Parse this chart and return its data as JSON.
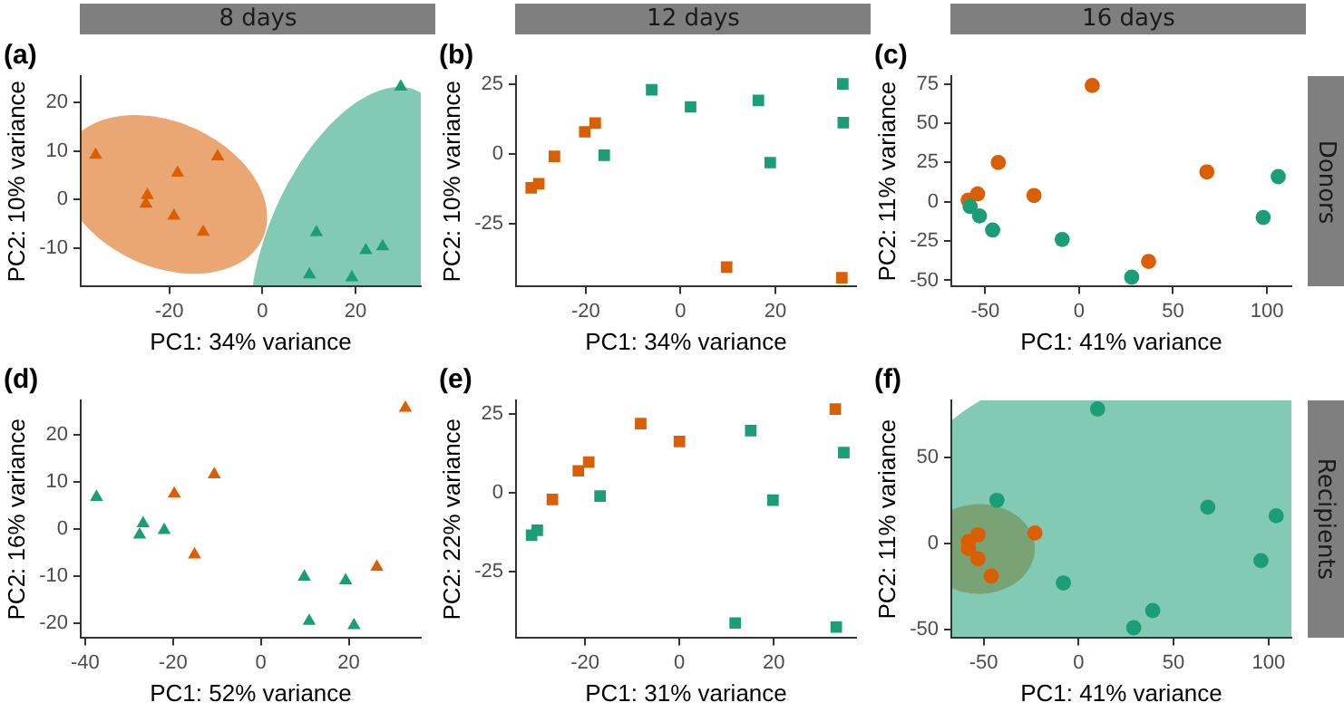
{
  "chart_data": [
    {
      "type": "scatter",
      "title": "(a)",
      "subtitle": "8 days",
      "xlabel": "PC1: 34% variance",
      "ylabel": "PC2: 10% variance",
      "marker": "triangle",
      "xlim": [
        -39,
        34
      ],
      "ylim": [
        -18,
        25.5
      ],
      "xticks": [
        -20,
        0,
        20
      ],
      "yticks": [
        -10,
        0,
        10,
        20
      ],
      "series": [
        {
          "color": "#d95f02",
          "x": [
            -35.8,
            -9.6,
            -18.2,
            -24.7,
            -25,
            -19,
            -12.7
          ],
          "values": [
            9.2,
            8.9,
            5.5,
            0.9,
            -0.9,
            -3.4,
            -6.7
          ]
        },
        {
          "color": "#1b9e77",
          "x": [
            29.7,
            11.6,
            22.2,
            25.8,
            10.1,
            19.2
          ],
          "values": [
            23.3,
            -6.8,
            -10.5,
            -9.7,
            -15.5,
            -16.1
          ]
        }
      ]
    },
    {
      "type": "scatter",
      "title": "(b)",
      "subtitle": "12 days",
      "xlabel": "PC1: 34% variance",
      "ylabel": "PC2: 10% variance",
      "marker": "square",
      "xlim": [
        -34.7,
        37
      ],
      "ylim": [
        -47.4,
        27.8
      ],
      "xticks": [
        -20,
        0,
        20
      ],
      "yticks": [
        -25,
        0,
        25
      ],
      "series": [
        {
          "color": "#d95f02",
          "x": [
            -31.5,
            -29.9,
            -26.6,
            -20.2,
            -18,
            9.7,
            34
          ],
          "values": [
            -12.1,
            -10.7,
            -0.9,
            7.9,
            11,
            -40.4,
            -44.2
          ]
        },
        {
          "color": "#1b9e77",
          "x": [
            -6.1,
            2.1,
            16.4,
            34.2,
            34.3,
            18.9,
            -16.1
          ],
          "values": [
            22.9,
            16.8,
            19.1,
            25,
            11.2,
            -3.1,
            -0.5
          ]
        }
      ]
    },
    {
      "type": "scatter",
      "title": "(c)",
      "subtitle": "16 days",
      "y2label": "Donors",
      "xlabel": "PC1: 41% variance",
      "ylabel": "PC2: 11% variance",
      "marker": "circle",
      "xlim": [
        -68,
        113
      ],
      "ylim": [
        -54,
        80
      ],
      "xticks": [
        -50,
        0,
        50,
        100
      ],
      "yticks": [
        -50,
        -25,
        0,
        25,
        50,
        75
      ],
      "series": [
        {
          "color": "#d95f02",
          "x": [
            7,
            -43,
            -54,
            -59,
            -24,
            68,
            37
          ],
          "values": [
            74,
            25,
            5,
            1,
            4,
            19,
            -38
          ]
        },
        {
          "color": "#1b9e77",
          "x": [
            -58,
            -53,
            -46,
            -9,
            28,
            98,
            106
          ],
          "values": [
            -3,
            -9,
            -18,
            -24,
            -48,
            -10,
            16
          ]
        }
      ]
    },
    {
      "type": "scatter",
      "title": "(d)",
      "xlabel": "PC1: 52% variance",
      "ylabel": "PC2: 16% variance",
      "marker": "triangle",
      "xlim": [
        -41,
        36.4
      ],
      "ylim": [
        -23.1,
        27.3
      ],
      "xticks": [
        -40,
        -20,
        0,
        20
      ],
      "yticks": [
        -20,
        -10,
        0,
        10,
        20
      ],
      "series": [
        {
          "color": "#d95f02",
          "x": [
            32.9,
            -10.6,
            -19.7,
            -15.1,
            26.4
          ],
          "values": [
            25.7,
            11.6,
            7.5,
            -5.4,
            -8
          ]
        },
        {
          "color": "#1b9e77",
          "x": [
            -37.4,
            -26.8,
            -27.6,
            -22,
            9.9,
            19.3,
            11,
            21.2
          ],
          "values": [
            6.8,
            1.2,
            -1.2,
            -0.2,
            -10.1,
            -10.9,
            -19.5,
            -20.4
          ]
        }
      ]
    },
    {
      "type": "scatter",
      "title": "(e)",
      "xlabel": "PC1: 31% variance",
      "ylabel": "PC2: 22% variance",
      "marker": "square",
      "xlim": [
        -34.6,
        37.4
      ],
      "ylim": [
        -46.2,
        29.4
      ],
      "xticks": [
        -20,
        0,
        20
      ],
      "yticks": [
        -25,
        0,
        25
      ],
      "series": [
        {
          "color": "#d95f02",
          "x": [
            -26.9,
            -21.4,
            -19.2,
            -8.2,
            0,
            33
          ],
          "values": [
            -2.1,
            7,
            9.8,
            22,
            16.3,
            26.6
          ]
        },
        {
          "color": "#1b9e77",
          "x": [
            -31.3,
            -30.1,
            -16.8,
            15.1,
            19.8,
            34.8,
            11.8,
            33.2
          ],
          "values": [
            -13.5,
            -11.9,
            -1,
            19.8,
            -2.3,
            12.8,
            -41.4,
            -42.7
          ]
        }
      ]
    },
    {
      "type": "scatter",
      "title": "(f)",
      "y2label": "Recipients",
      "xlabel": "PC1: 41% variance",
      "ylabel": "PC2: 11% variance",
      "marker": "circle",
      "xlim": [
        -67,
        112
      ],
      "ylim": [
        -55,
        83
      ],
      "xticks": [
        -50,
        0,
        50,
        100
      ],
      "yticks": [
        -50,
        0,
        50
      ],
      "series": [
        {
          "color": "#d95f02",
          "x": [
            -53,
            -58,
            -58,
            -53,
            -46,
            -23
          ],
          "values": [
            5,
            1,
            -3,
            -9,
            -19,
            6
          ]
        },
        {
          "color": "#1b9e77",
          "x": [
            10,
            -43,
            -8,
            39,
            29,
            68,
            96,
            104
          ],
          "values": [
            78,
            25,
            -23,
            -39,
            -49,
            21,
            -10,
            16
          ]
        }
      ]
    }
  ]
}
